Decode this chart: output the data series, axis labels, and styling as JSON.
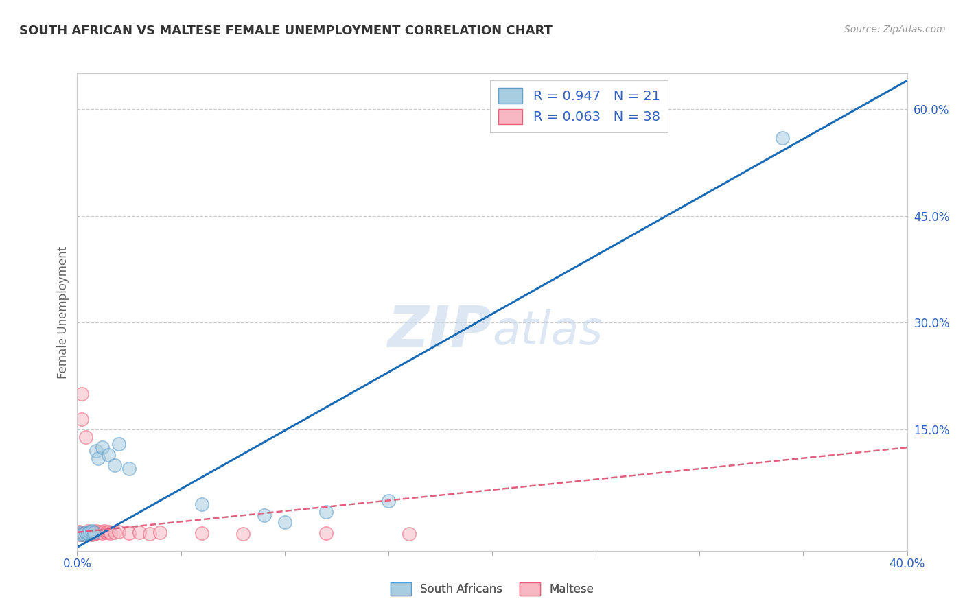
{
  "title": "SOUTH AFRICAN VS MALTESE FEMALE UNEMPLOYMENT CORRELATION CHART",
  "source": "Source: ZipAtlas.com",
  "ylabel": "Female Unemployment",
  "watermark_zip": "ZIP",
  "watermark_atlas": "atlas",
  "xlim": [
    0.0,
    0.4
  ],
  "ylim": [
    -0.02,
    0.65
  ],
  "xticks": [
    0.0,
    0.05,
    0.1,
    0.15,
    0.2,
    0.25,
    0.3,
    0.35,
    0.4
  ],
  "yticks_right": [
    0.0,
    0.15,
    0.3,
    0.45,
    0.6
  ],
  "ytick_labels_right": [
    "",
    "15.0%",
    "30.0%",
    "45.0%",
    "60.0%"
  ],
  "sa_color": "#a8cce0",
  "sa_edge_color": "#5b9dc9",
  "maltese_color": "#f7b8c4",
  "maltese_edge_color": "#e8607a",
  "sa_R": 0.947,
  "sa_N": 21,
  "maltese_R": 0.063,
  "maltese_N": 38,
  "sa_line_color": "#1a6bb5",
  "maltese_line_color": "#e06080",
  "blue_text_color": "#3060c0",
  "background_color": "#ffffff",
  "grid_color": "#cccccc",
  "title_color": "#333333",
  "sa_x": [
    0.001,
    0.002,
    0.003,
    0.004,
    0.005,
    0.006,
    0.007,
    0.008,
    0.009,
    0.01,
    0.012,
    0.015,
    0.018,
    0.02,
    0.025,
    0.06,
    0.09,
    0.1,
    0.12,
    0.15,
    0.34
  ],
  "sa_y": [
    0.005,
    0.003,
    0.004,
    0.006,
    0.005,
    0.007,
    0.008,
    0.006,
    0.12,
    0.11,
    0.125,
    0.115,
    0.1,
    0.13,
    0.095,
    0.045,
    0.03,
    0.02,
    0.035,
    0.05,
    0.56
  ],
  "maltese_x": [
    0.001,
    0.001,
    0.001,
    0.002,
    0.002,
    0.002,
    0.003,
    0.003,
    0.004,
    0.004,
    0.005,
    0.005,
    0.005,
    0.006,
    0.006,
    0.007,
    0.007,
    0.008,
    0.008,
    0.009,
    0.009,
    0.01,
    0.011,
    0.012,
    0.013,
    0.014,
    0.015,
    0.016,
    0.018,
    0.02,
    0.025,
    0.03,
    0.035,
    0.04,
    0.06,
    0.08,
    0.12,
    0.16
  ],
  "maltese_y": [
    0.005,
    0.003,
    0.007,
    0.2,
    0.165,
    0.004,
    0.005,
    0.003,
    0.004,
    0.14,
    0.006,
    0.003,
    0.008,
    0.005,
    0.004,
    0.006,
    0.003,
    0.007,
    0.004,
    0.005,
    0.008,
    0.006,
    0.007,
    0.005,
    0.008,
    0.006,
    0.007,
    0.005,
    0.006,
    0.007,
    0.005,
    0.006,
    0.004,
    0.006,
    0.005,
    0.004,
    0.005,
    0.004
  ],
  "marker_size": 195,
  "marker_alpha": 0.55,
  "sa_line_x0": 0.0,
  "sa_line_y0": -0.015,
  "sa_line_x1": 0.4,
  "sa_line_y1": 0.64,
  "maltese_line_x0": 0.0,
  "maltese_line_y0": 0.006,
  "maltese_line_x1": 0.4,
  "maltese_line_y1": 0.125
}
